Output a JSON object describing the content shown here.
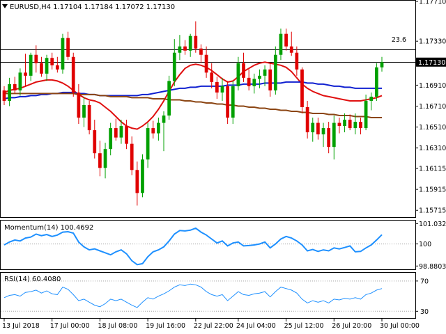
{
  "header": {
    "symbol_line": "EURUSD,H4  1.17104 1.17184 1.17072 1.17130",
    "fib_label": "23.6",
    "current_price_label": "1.17130"
  },
  "colors": {
    "bull_candle": "#00a000",
    "bear_candle": "#e00000",
    "ma_red": "#e01010",
    "ma_blue": "#1020d0",
    "ma_brown": "#8b4513",
    "indicator_line": "#1e90ff",
    "grid_dots": "#a0a0a0"
  },
  "chart_data": [
    {
      "type": "candlestick",
      "title": "EURUSD,H4",
      "ohlc_header": [
        "1.17104",
        "1.17184",
        "1.17072",
        "1.17130"
      ],
      "ylim": [
        1.1565,
        1.1771
      ],
      "y_ticks": [
        "1.17710",
        "1.17330",
        "1.17130",
        "1.16910",
        "1.16710",
        "1.16510",
        "1.16310",
        "1.16115",
        "1.15915",
        "1.15715"
      ],
      "x_ticks": [
        "13 Jul 2018",
        "17 Jul 00:00",
        "18 Jul 08:00",
        "19 Jul 16:00",
        "22 Jul 22:00",
        "24 Jul 04:00",
        "25 Jul 12:00",
        "26 Jul 20:00",
        "30 Jul 00:00"
      ],
      "horizontal_lines": [
        {
          "label": "23.6",
          "value": 1.1725
        },
        {
          "label": "",
          "value": 1.1713
        }
      ],
      "current_price": 1.1713,
      "candles": [
        [
          1.1686,
          1.169,
          1.1672,
          1.1676
        ],
        [
          1.1676,
          1.1698,
          1.1671,
          1.1692
        ],
        [
          1.1692,
          1.1699,
          1.1683,
          1.1686
        ],
        [
          1.1686,
          1.1707,
          1.1681,
          1.1703
        ],
        [
          1.1703,
          1.1721,
          1.169,
          1.17
        ],
        [
          1.17,
          1.1722,
          1.1695,
          1.172
        ],
        [
          1.172,
          1.1729,
          1.1703,
          1.1712
        ],
        [
          1.1712,
          1.1718,
          1.1699,
          1.1702
        ],
        [
          1.1702,
          1.172,
          1.1695,
          1.1717
        ],
        [
          1.1717,
          1.1722,
          1.1706,
          1.171
        ],
        [
          1.171,
          1.1718,
          1.1703,
          1.1706
        ],
        [
          1.1706,
          1.174,
          1.1702,
          1.1736
        ],
        [
          1.1736,
          1.1742,
          1.1715,
          1.1718
        ],
        [
          1.1718,
          1.1722,
          1.168,
          1.1684
        ],
        [
          1.1684,
          1.1692,
          1.1654,
          1.166
        ],
        [
          1.166,
          1.168,
          1.1651,
          1.1672
        ],
        [
          1.1672,
          1.1676,
          1.1644,
          1.1648
        ],
        [
          1.1648,
          1.1658,
          1.1621,
          1.1626
        ],
        [
          1.1626,
          1.1638,
          1.1604,
          1.1612
        ],
        [
          1.1612,
          1.1636,
          1.1602,
          1.163
        ],
        [
          1.163,
          1.1655,
          1.1624,
          1.165
        ],
        [
          1.165,
          1.1659,
          1.1638,
          1.1641
        ],
        [
          1.1641,
          1.1658,
          1.1635,
          1.1652
        ],
        [
          1.1652,
          1.1658,
          1.163,
          1.1635
        ],
        [
          1.1635,
          1.1642,
          1.1605,
          1.161
        ],
        [
          1.161,
          1.1618,
          1.1576,
          1.1588
        ],
        [
          1.1588,
          1.1625,
          1.1584,
          1.162
        ],
        [
          1.162,
          1.1655,
          1.1612,
          1.165
        ],
        [
          1.165,
          1.1657,
          1.164,
          1.1645
        ],
        [
          1.1645,
          1.166,
          1.1638,
          1.1655
        ],
        [
          1.1655,
          1.1666,
          1.1628,
          1.1662
        ],
        [
          1.1662,
          1.17,
          1.1658,
          1.1695
        ],
        [
          1.1695,
          1.1735,
          1.169,
          1.1722
        ],
        [
          1.1722,
          1.1739,
          1.1715,
          1.1728
        ],
        [
          1.1728,
          1.1734,
          1.172,
          1.1724
        ],
        [
          1.1724,
          1.174,
          1.1718,
          1.1738
        ],
        [
          1.1738,
          1.1752,
          1.1722,
          1.1726
        ],
        [
          1.1726,
          1.173,
          1.1712,
          1.172
        ],
        [
          1.172,
          1.1728,
          1.1698,
          1.1703
        ],
        [
          1.1703,
          1.1712,
          1.1688,
          1.1694
        ],
        [
          1.1694,
          1.1699,
          1.1678,
          1.1684
        ],
        [
          1.1684,
          1.1698,
          1.1676,
          1.169
        ],
        [
          1.169,
          1.1695,
          1.1654,
          1.166
        ],
        [
          1.166,
          1.1695,
          1.1654,
          1.169
        ],
        [
          1.169,
          1.1718,
          1.1686,
          1.1712
        ],
        [
          1.1712,
          1.1722,
          1.1694,
          1.1698
        ],
        [
          1.1698,
          1.1706,
          1.1686,
          1.169
        ],
        [
          1.169,
          1.1702,
          1.1683,
          1.1697
        ],
        [
          1.1697,
          1.1706,
          1.1688,
          1.17
        ],
        [
          1.17,
          1.171,
          1.169,
          1.1706
        ],
        [
          1.1706,
          1.1712,
          1.168,
          1.1686
        ],
        [
          1.1686,
          1.1728,
          1.1682,
          1.172
        ],
        [
          1.172,
          1.1745,
          1.1715,
          1.174
        ],
        [
          1.174,
          1.1745,
          1.1724,
          1.1728
        ],
        [
          1.1728,
          1.1742,
          1.1719,
          1.1722
        ],
        [
          1.1722,
          1.1728,
          1.17,
          1.1706
        ],
        [
          1.1706,
          1.1708,
          1.1664,
          1.167
        ],
        [
          1.167,
          1.1676,
          1.164,
          1.1646
        ],
        [
          1.1646,
          1.166,
          1.1637,
          1.1655
        ],
        [
          1.1655,
          1.166,
          1.1639,
          1.1644
        ],
        [
          1.1644,
          1.1655,
          1.1632,
          1.165
        ],
        [
          1.165,
          1.1656,
          1.1626,
          1.1632
        ],
        [
          1.1632,
          1.1662,
          1.162,
          1.1655
        ],
        [
          1.1655,
          1.166,
          1.1645,
          1.1652
        ],
        [
          1.1652,
          1.1664,
          1.1646,
          1.1658
        ],
        [
          1.1658,
          1.1663,
          1.1648,
          1.165
        ],
        [
          1.165,
          1.1664,
          1.1644,
          1.1656
        ],
        [
          1.1656,
          1.166,
          1.1644,
          1.165
        ],
        [
          1.165,
          1.1682,
          1.1648,
          1.1676
        ],
        [
          1.1676,
          1.1684,
          1.1667,
          1.168
        ],
        [
          1.168,
          1.1712,
          1.1676,
          1.1708
        ],
        [
          1.1708,
          1.1718,
          1.1704,
          1.1713
        ]
      ],
      "moving_averages": [
        {
          "color": "red",
          "values": [
            1.1684,
            1.1686,
            1.1687,
            1.1688,
            1.169,
            1.1692,
            1.1694,
            1.1695,
            1.1696,
            1.1696,
            1.1695,
            1.1693,
            1.169,
            1.1686,
            1.1682,
            1.1679,
            1.1677,
            1.1676,
            1.1674,
            1.167,
            1.1666,
            1.1661,
            1.1656,
            1.1652,
            1.165,
            1.1649,
            1.1652,
            1.1656,
            1.1661,
            1.1668,
            1.1676,
            1.1685,
            1.1694,
            1.1701,
            1.1707,
            1.171,
            1.1711,
            1.171,
            1.1708,
            1.1705,
            1.1701,
            1.1697,
            1.1694,
            1.1695,
            1.1699,
            1.1704,
            1.1707,
            1.171,
            1.1712,
            1.1713,
            1.1712,
            1.1711,
            1.171,
            1.1708,
            1.1704,
            1.1698,
            1.1692,
            1.1688,
            1.1685,
            1.1683,
            1.1681,
            1.168,
            1.1679,
            1.1678,
            1.1677,
            1.1676,
            1.1676,
            1.1676,
            1.1677,
            1.1678,
            1.1679,
            1.1681
          ]
        },
        {
          "color": "blue",
          "values": [
            1.1678,
            1.1679,
            1.1679,
            1.168,
            1.168,
            1.1681,
            1.1681,
            1.1682,
            1.1682,
            1.1683,
            1.1683,
            1.1684,
            1.1684,
            1.1684,
            1.1683,
            1.1683,
            1.1682,
            1.1682,
            1.1681,
            1.1681,
            1.1681,
            1.1681,
            1.1681,
            1.1681,
            1.1681,
            1.1681,
            1.1682,
            1.1682,
            1.1683,
            1.1684,
            1.1685,
            1.1686,
            1.1687,
            1.1688,
            1.1688,
            1.1689,
            1.1689,
            1.169,
            1.169,
            1.169,
            1.169,
            1.169,
            1.1691,
            1.1691,
            1.1691,
            1.1692,
            1.1692,
            1.1692,
            1.1692,
            1.1693,
            1.1693,
            1.1693,
            1.1693,
            1.1694,
            1.1694,
            1.1694,
            1.1694,
            1.1693,
            1.1693,
            1.1692,
            1.1692,
            1.1691,
            1.169,
            1.169,
            1.1689,
            1.1689,
            1.1688,
            1.1688,
            1.1688,
            1.1688,
            1.1688,
            1.1688
          ]
        },
        {
          "color": "brown",
          "values": [
            1.1683,
            1.1683,
            1.1683,
            1.1683,
            1.1683,
            1.1683,
            1.1683,
            1.1683,
            1.1683,
            1.1683,
            1.1683,
            1.1683,
            1.1683,
            1.1683,
            1.1682,
            1.1682,
            1.1682,
            1.1682,
            1.1681,
            1.1681,
            1.168,
            1.168,
            1.168,
            1.168,
            1.1679,
            1.1679,
            1.1679,
            1.1679,
            1.1678,
            1.1678,
            1.1678,
            1.1677,
            1.1677,
            1.1677,
            1.1676,
            1.1676,
            1.1675,
            1.1675,
            1.1674,
            1.1674,
            1.1673,
            1.1673,
            1.1672,
            1.1672,
            1.1671,
            1.1671,
            1.167,
            1.167,
            1.1669,
            1.1669,
            1.1668,
            1.1668,
            1.1667,
            1.1667,
            1.1666,
            1.1666,
            1.1665,
            1.1665,
            1.1664,
            1.1664,
            1.1664,
            1.1663,
            1.1663,
            1.1662,
            1.1662,
            1.1662,
            1.1661,
            1.1661,
            1.1661,
            1.166,
            1.166,
            1.166
          ]
        }
      ]
    },
    {
      "type": "line",
      "title": "Momentum(14) 100.4692",
      "ylim": [
        98.75,
        101.15
      ],
      "y_ticks": [
        "101.0327",
        "100",
        "98.8803"
      ],
      "reference_line": 100,
      "series": [
        {
          "name": "Momentum(14)",
          "values": [
            99.95,
            100.1,
            100.2,
            100.15,
            100.3,
            100.35,
            100.5,
            100.42,
            100.48,
            100.38,
            100.45,
            100.6,
            100.62,
            100.55,
            100.1,
            99.85,
            99.7,
            99.75,
            99.65,
            99.55,
            99.45,
            99.6,
            99.7,
            99.5,
            99.15,
            98.95,
            99.0,
            99.35,
            99.6,
            99.7,
            99.85,
            100.15,
            100.5,
            100.68,
            100.66,
            100.7,
            100.8,
            100.6,
            100.45,
            100.25,
            100.05,
            100.15,
            99.9,
            100.05,
            100.1,
            99.9,
            99.92,
            99.95,
            100.0,
            100.1,
            99.8,
            100.0,
            100.25,
            100.38,
            100.3,
            100.15,
            99.95,
            99.65,
            99.72,
            99.62,
            99.7,
            99.65,
            99.8,
            99.75,
            99.82,
            99.9,
            99.6,
            99.62,
            99.8,
            99.95,
            100.2,
            100.47
          ]
        }
      ]
    },
    {
      "type": "line",
      "title": "RSI(14) 60.4080",
      "ylim": [
        22,
        80
      ],
      "y_ticks": [
        "70",
        "30"
      ],
      "reference_lines": [
        70,
        30
      ],
      "series": [
        {
          "name": "RSI(14)",
          "values": [
            48,
            51,
            52,
            50,
            55,
            56,
            58,
            54,
            57,
            53,
            52,
            62,
            59,
            52,
            44,
            46,
            42,
            38,
            36,
            40,
            46,
            44,
            46,
            42,
            38,
            35,
            42,
            48,
            46,
            50,
            53,
            57,
            62,
            65,
            64,
            66,
            65,
            62,
            56,
            52,
            50,
            52,
            44,
            50,
            56,
            52,
            51,
            53,
            54,
            56,
            49,
            56,
            62,
            60,
            58,
            54,
            46,
            41,
            44,
            42,
            44,
            41,
            46,
            45,
            47,
            46,
            48,
            46,
            52,
            54,
            58,
            60
          ]
        }
      ]
    }
  ]
}
